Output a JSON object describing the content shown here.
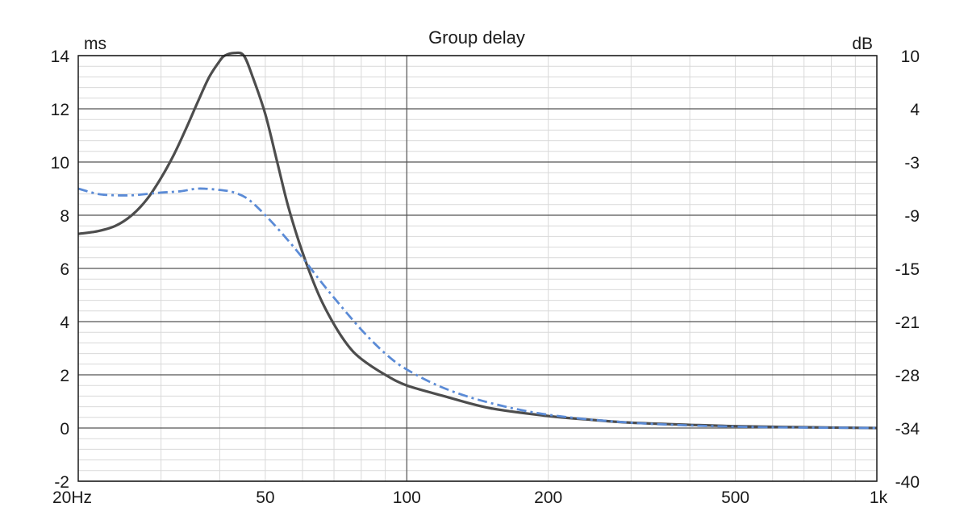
{
  "chart_data": {
    "type": "line",
    "title": "Group delay",
    "left_unit": "ms",
    "right_unit": "dB",
    "x_scale": "log",
    "xlim": [
      20,
      1000
    ],
    "x_ticks": [
      {
        "value": 20,
        "label": "20Hz"
      },
      {
        "value": 50,
        "label": "50"
      },
      {
        "value": 100,
        "label": "100"
      },
      {
        "value": 200,
        "label": "200"
      },
      {
        "value": 500,
        "label": "500"
      },
      {
        "value": 1000,
        "label": "1k"
      }
    ],
    "ylim": [
      -2,
      14
    ],
    "y_ticks": [
      "14",
      "12",
      "10",
      "8",
      "6",
      "4",
      "2",
      "0",
      "-2"
    ],
    "y2lim": [
      -40,
      10
    ],
    "y2_ticks": [
      "10",
      "4",
      "-3",
      "-9",
      "-15",
      "-21",
      "-28",
      "-34",
      "-40"
    ],
    "grid": true,
    "series": [
      {
        "style": "solid",
        "color": "#4d4d4d",
        "axis": "left",
        "points": [
          [
            20,
            7.3
          ],
          [
            22,
            7.4
          ],
          [
            24,
            7.6
          ],
          [
            26,
            8.0
          ],
          [
            28,
            8.6
          ],
          [
            30,
            9.4
          ],
          [
            32,
            10.3
          ],
          [
            34,
            11.3
          ],
          [
            36,
            12.3
          ],
          [
            38,
            13.2
          ],
          [
            40,
            13.8
          ],
          [
            41,
            14.0
          ],
          [
            43,
            14.1
          ],
          [
            45,
            14.0
          ],
          [
            47,
            13.2
          ],
          [
            50,
            11.8
          ],
          [
            53,
            10.0
          ],
          [
            56,
            8.3
          ],
          [
            60,
            6.6
          ],
          [
            65,
            5.0
          ],
          [
            70,
            3.9
          ],
          [
            75,
            3.1
          ],
          [
            80,
            2.6
          ],
          [
            90,
            2.0
          ],
          [
            100,
            1.6
          ],
          [
            120,
            1.2
          ],
          [
            150,
            0.75
          ],
          [
            200,
            0.45
          ],
          [
            250,
            0.3
          ],
          [
            300,
            0.2
          ],
          [
            400,
            0.12
          ],
          [
            500,
            0.07
          ],
          [
            700,
            0.03
          ],
          [
            1000,
            0.0
          ]
        ]
      },
      {
        "style": "dash-dot",
        "color": "#5b8bd6",
        "axis": "left",
        "points": [
          [
            20,
            9.0
          ],
          [
            22,
            8.8
          ],
          [
            24,
            8.75
          ],
          [
            26,
            8.75
          ],
          [
            28,
            8.8
          ],
          [
            30,
            8.85
          ],
          [
            33,
            8.9
          ],
          [
            36,
            9.0
          ],
          [
            40,
            8.95
          ],
          [
            43,
            8.85
          ],
          [
            46,
            8.6
          ],
          [
            50,
            8.0
          ],
          [
            55,
            7.2
          ],
          [
            60,
            6.4
          ],
          [
            65,
            5.6
          ],
          [
            70,
            4.9
          ],
          [
            80,
            3.7
          ],
          [
            90,
            2.8
          ],
          [
            100,
            2.2
          ],
          [
            120,
            1.5
          ],
          [
            150,
            0.95
          ],
          [
            200,
            0.5
          ],
          [
            300,
            0.2
          ],
          [
            500,
            0.05
          ],
          [
            1000,
            0.0
          ]
        ]
      }
    ]
  }
}
